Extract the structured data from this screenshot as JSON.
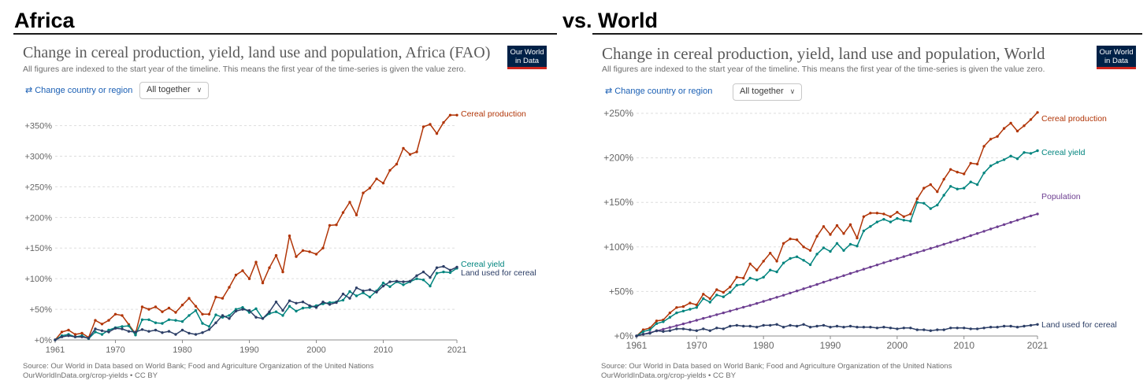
{
  "headings": {
    "left": "Africa",
    "right": "vs. World"
  },
  "panels": [
    {
      "title": "Change in cereal production, yield, land use and population, Africa (FAO)",
      "subtitle": "All figures are indexed to the start year of the timeline. This means the first year of the time-series is given the value zero.",
      "logo": {
        "line1": "Our World",
        "line2": "in Data"
      },
      "change_label": "Change country or region",
      "select_label": "All together",
      "source_line1": "Source: Our World in Data based on World Bank; Food and Agriculture Organization of the United Nations",
      "source_line2": "OurWorldInData.org/crop-yields • CC BY"
    },
    {
      "title": "Change in cereal production, yield, land use and population, World",
      "subtitle": "All figures are indexed to the start year of the timeline. This means the first year of the time-series is given the value zero.",
      "logo": {
        "line1": "Our World",
        "line2": "in Data"
      },
      "change_label": "Change country or region",
      "select_label": "All together",
      "source_line1": "Source: Our World in Data based on World Bank; Food and Agriculture Organization of the United Nations",
      "source_line2": "OurWorldInData.org/crop-yields • CC BY"
    }
  ],
  "colors": {
    "production": "#b13507",
    "yield": "#00847e",
    "land": "#2c3e66",
    "population": "#6d3e91",
    "grid": "#dddddd",
    "axis": "#8c8c8c"
  },
  "chart_data": [
    {
      "type": "line",
      "x_ticks": [
        1961,
        1970,
        1980,
        1990,
        2000,
        2010,
        2021
      ],
      "y_ticks": [
        "+0%",
        "+50%",
        "+100%",
        "+150%",
        "+200%",
        "+250%",
        "+300%",
        "+350%"
      ],
      "y_tick_values": [
        0,
        50,
        100,
        150,
        200,
        250,
        300,
        350
      ],
      "ylim": [
        0,
        370
      ],
      "xlim": [
        1961,
        2021
      ],
      "grid": true,
      "x": [
        1961,
        1962,
        1963,
        1964,
        1965,
        1966,
        1967,
        1968,
        1969,
        1970,
        1971,
        1972,
        1973,
        1974,
        1975,
        1976,
        1977,
        1978,
        1979,
        1980,
        1981,
        1982,
        1983,
        1984,
        1985,
        1986,
        1987,
        1988,
        1989,
        1990,
        1991,
        1992,
        1993,
        1994,
        1995,
        1996,
        1997,
        1998,
        1999,
        2000,
        2001,
        2002,
        2003,
        2004,
        2005,
        2006,
        2007,
        2008,
        2009,
        2010,
        2011,
        2012,
        2013,
        2014,
        2015,
        2016,
        2017,
        2018,
        2019,
        2020,
        2021
      ],
      "series": [
        {
          "name": "Cereal production",
          "color_key": "production",
          "values": [
            0,
            13,
            16,
            9,
            11,
            4,
            32,
            26,
            32,
            42,
            40,
            25,
            10,
            54,
            50,
            54,
            46,
            52,
            45,
            57,
            68,
            55,
            42,
            42,
            70,
            68,
            86,
            106,
            113,
            100,
            127,
            93,
            118,
            138,
            111,
            170,
            136,
            146,
            144,
            140,
            150,
            187,
            188,
            208,
            225,
            204,
            240,
            248,
            263,
            256,
            277,
            287,
            313,
            303,
            307,
            348,
            352,
            337,
            355,
            367,
            367
          ]
        },
        {
          "name": "Cereal yield",
          "color_key": "yield",
          "values": [
            0,
            7,
            9,
            5,
            7,
            2,
            13,
            9,
            16,
            20,
            22,
            23,
            8,
            33,
            33,
            28,
            27,
            33,
            32,
            30,
            40,
            48,
            27,
            22,
            41,
            37,
            40,
            50,
            53,
            45,
            51,
            35,
            43,
            46,
            40,
            55,
            47,
            52,
            53,
            56,
            59,
            61,
            62,
            65,
            79,
            72,
            77,
            70,
            80,
            93,
            87,
            95,
            90,
            95,
            100,
            98,
            88,
            109,
            111,
            110,
            117
          ]
        },
        {
          "name": "Land used for cereal",
          "color_key": "land",
          "values": [
            0,
            5,
            7,
            5,
            5,
            3,
            18,
            15,
            13,
            19,
            18,
            14,
            13,
            17,
            14,
            16,
            12,
            14,
            9,
            16,
            11,
            9,
            12,
            17,
            28,
            40,
            35,
            47,
            50,
            48,
            37,
            35,
            46,
            62,
            48,
            64,
            60,
            62,
            56,
            53,
            62,
            58,
            61,
            75,
            68,
            85,
            80,
            82,
            78,
            88,
            95,
            96,
            95,
            96,
            105,
            111,
            102,
            118,
            120,
            114,
            119
          ]
        }
      ],
      "end_labels": [
        "Cereal production",
        "Cereal yield",
        "Land used for cereal"
      ]
    },
    {
      "type": "line",
      "x_ticks": [
        1961,
        1970,
        1980,
        1990,
        2000,
        2010,
        2021
      ],
      "y_ticks": [
        "+0%",
        "+50%",
        "+100%",
        "+150%",
        "+200%",
        "+250%"
      ],
      "y_tick_values": [
        0,
        50,
        100,
        150,
        200,
        250
      ],
      "ylim": [
        0,
        250
      ],
      "xlim": [
        1961,
        2021
      ],
      "grid": true,
      "x": [
        1961,
        1962,
        1963,
        1964,
        1965,
        1966,
        1967,
        1968,
        1969,
        1970,
        1971,
        1972,
        1973,
        1974,
        1975,
        1976,
        1977,
        1978,
        1979,
        1980,
        1981,
        1982,
        1983,
        1984,
        1985,
        1986,
        1987,
        1988,
        1989,
        1990,
        1991,
        1992,
        1993,
        1994,
        1995,
        1996,
        1997,
        1998,
        1999,
        2000,
        2001,
        2002,
        2003,
        2004,
        2005,
        2006,
        2007,
        2008,
        2009,
        2010,
        2011,
        2012,
        2013,
        2014,
        2015,
        2016,
        2017,
        2018,
        2019,
        2020,
        2021
      ],
      "series": [
        {
          "name": "Cereal production",
          "color_key": "production",
          "values": [
            0,
            7,
            9,
            17,
            18,
            26,
            32,
            33,
            37,
            35,
            47,
            42,
            52,
            49,
            55,
            66,
            65,
            81,
            74,
            84,
            93,
            84,
            104,
            109,
            108,
            100,
            96,
            112,
            123,
            114,
            124,
            115,
            125,
            110,
            134,
            138,
            138,
            137,
            134,
            139,
            134,
            137,
            154,
            166,
            170,
            162,
            176,
            187,
            184,
            182,
            194,
            193,
            213,
            221,
            224,
            233,
            239,
            230,
            236,
            243,
            251
          ]
        },
        {
          "name": "Cereal yield",
          "color_key": "yield",
          "values": [
            0,
            5,
            7,
            14,
            16,
            21,
            26,
            28,
            30,
            32,
            42,
            38,
            46,
            44,
            49,
            57,
            58,
            65,
            63,
            66,
            74,
            72,
            82,
            87,
            89,
            85,
            80,
            92,
            99,
            95,
            104,
            96,
            103,
            101,
            118,
            123,
            128,
            131,
            128,
            132,
            130,
            129,
            150,
            149,
            143,
            147,
            158,
            168,
            165,
            166,
            173,
            170,
            183,
            191,
            195,
            198,
            202,
            199,
            206,
            205,
            208
          ]
        },
        {
          "name": "Population",
          "color_key": "population",
          "values": [
            0,
            1.9,
            3.8,
            5.7,
            7.6,
            9.6,
            11.6,
            13.6,
            15.6,
            17.7,
            19.8,
            21.8,
            23.9,
            26.0,
            28.1,
            30.2,
            32.3,
            34.4,
            36.6,
            38.9,
            41.2,
            43.5,
            45.8,
            48.2,
            50.6,
            53.0,
            55.5,
            57.9,
            60.4,
            62.9,
            65.3,
            67.8,
            70.2,
            72.6,
            75.0,
            77.4,
            79.8,
            82.2,
            84.5,
            86.8,
            89.1,
            91.4,
            93.7,
            96.0,
            98.3,
            100.6,
            103.0,
            105.3,
            107.7,
            110.1,
            112.6,
            115.1,
            117.6,
            120.1,
            122.6,
            125.1,
            127.6,
            130.0,
            132.5,
            134.8,
            137.0
          ]
        },
        {
          "name": "Land used for cereal",
          "color_key": "land",
          "values": [
            0,
            2,
            3,
            6,
            5,
            6,
            8,
            8,
            7,
            6,
            8,
            6,
            9,
            8,
            11,
            12,
            11,
            11,
            10,
            12,
            12,
            13,
            10,
            12,
            11,
            13,
            10,
            11,
            12,
            10,
            11,
            10,
            11,
            10,
            10,
            10,
            9,
            10,
            9,
            8,
            9,
            9,
            7,
            7,
            6,
            7,
            7,
            9,
            9,
            9,
            8,
            8,
            9,
            10,
            10,
            11,
            11,
            10,
            11,
            12,
            13
          ]
        }
      ],
      "end_labels": [
        "Cereal production",
        "Cereal yield",
        "Population",
        "Land used for cereal"
      ]
    }
  ]
}
